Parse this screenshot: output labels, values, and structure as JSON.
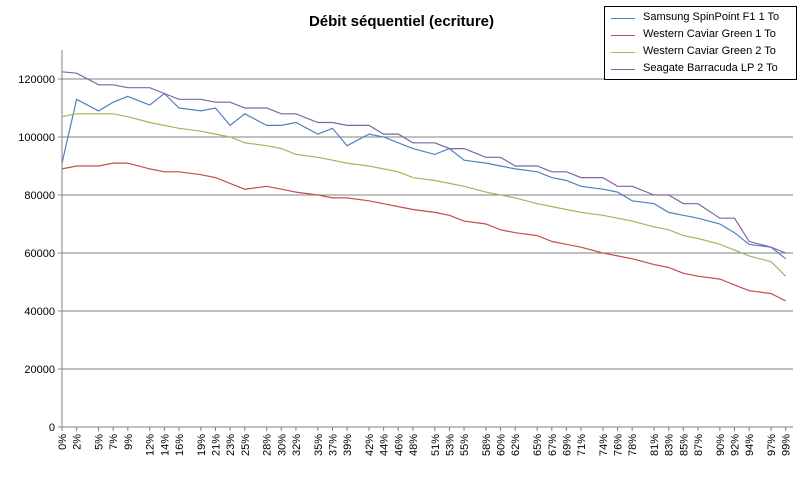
{
  "chart_data": {
    "type": "line",
    "title": "Débit séquentiel (ecriture)",
    "xlabel": "",
    "ylabel": "",
    "ylim": [
      0,
      130000
    ],
    "yticks": [
      0,
      20000,
      40000,
      60000,
      80000,
      100000,
      120000
    ],
    "ytick_labels": [
      "0",
      "20000",
      "40000",
      "60000",
      "80000",
      "100000",
      "120000"
    ],
    "xtick_labels": [
      "0%",
      "2%",
      "5%",
      "7%",
      "9%",
      "12%",
      "14%",
      "16%",
      "19%",
      "21%",
      "23%",
      "25%",
      "28%",
      "30%",
      "32%",
      "35%",
      "37%",
      "39%",
      "42%",
      "44%",
      "46%",
      "48%",
      "51%",
      "53%",
      "55%",
      "58%",
      "60%",
      "62%",
      "65%",
      "67%",
      "69%",
      "71%",
      "74%",
      "76%",
      "78%",
      "81%",
      "83%",
      "85%",
      "87%",
      "90%",
      "92%",
      "94%",
      "97%",
      "99%"
    ],
    "grid": "horizontal",
    "legend_position": "top-right",
    "x_percent": [
      0,
      2,
      5,
      7,
      9,
      12,
      14,
      16,
      19,
      21,
      23,
      25,
      28,
      30,
      32,
      35,
      37,
      39,
      42,
      44,
      46,
      48,
      51,
      53,
      55,
      58,
      60,
      62,
      65,
      67,
      69,
      71,
      74,
      76,
      78,
      81,
      83,
      85,
      87,
      90,
      92,
      94,
      97,
      99
    ],
    "series": [
      {
        "name": "Samsung SpinPoint F1 1 To",
        "color": "#4f81bd",
        "values": [
          91000,
          113000,
          109000,
          112000,
          114000,
          111000,
          115000,
          110000,
          109000,
          110000,
          104000,
          108000,
          104000,
          104000,
          105000,
          101000,
          103000,
          97000,
          101000,
          100000,
          98000,
          96000,
          94000,
          96000,
          92000,
          91000,
          90000,
          89000,
          88000,
          86000,
          85000,
          83000,
          82000,
          81000,
          78000,
          77000,
          74000,
          73000,
          72000,
          70000,
          67000,
          63000,
          62000,
          58000
        ]
      },
      {
        "name": "Western Caviar Green 1 To",
        "color": "#c0504d",
        "values": [
          89000,
          90000,
          90000,
          91000,
          91000,
          89000,
          88000,
          88000,
          87000,
          86000,
          84000,
          82000,
          83000,
          82000,
          81000,
          80000,
          79000,
          79000,
          78000,
          77000,
          76000,
          75000,
          74000,
          73000,
          71000,
          70000,
          68000,
          67000,
          66000,
          64000,
          63000,
          62000,
          60000,
          59000,
          58000,
          56000,
          55000,
          53000,
          52000,
          51000,
          49000,
          47000,
          46000,
          43500
        ]
      },
      {
        "name": "Western Caviar Green 2 To",
        "color": "#9bbb59",
        "values": [
          107000,
          108000,
          108000,
          108000,
          107000,
          105000,
          104000,
          103000,
          102000,
          101000,
          100000,
          98000,
          97000,
          96000,
          94000,
          93000,
          92000,
          91000,
          90000,
          89000,
          88000,
          86000,
          85000,
          84000,
          83000,
          81000,
          80000,
          79000,
          77000,
          76000,
          75000,
          74000,
          73000,
          72000,
          71000,
          69000,
          68000,
          66000,
          65000,
          63000,
          61000,
          59000,
          57000,
          52000
        ]
      },
      {
        "name": "Seagate Barracuda LP 2 To",
        "color": "#8064a2",
        "values": [
          122500,
          122000,
          118000,
          118000,
          117000,
          117000,
          115000,
          113000,
          113000,
          112000,
          112000,
          110000,
          110000,
          108000,
          108000,
          105000,
          105000,
          104000,
          104000,
          101000,
          101000,
          98000,
          98000,
          96000,
          96000,
          93000,
          93000,
          90000,
          90000,
          88000,
          88000,
          86000,
          86000,
          83000,
          83000,
          80000,
          80000,
          77000,
          77000,
          72000,
          72000,
          64000,
          62000,
          60000
        ]
      }
    ]
  }
}
